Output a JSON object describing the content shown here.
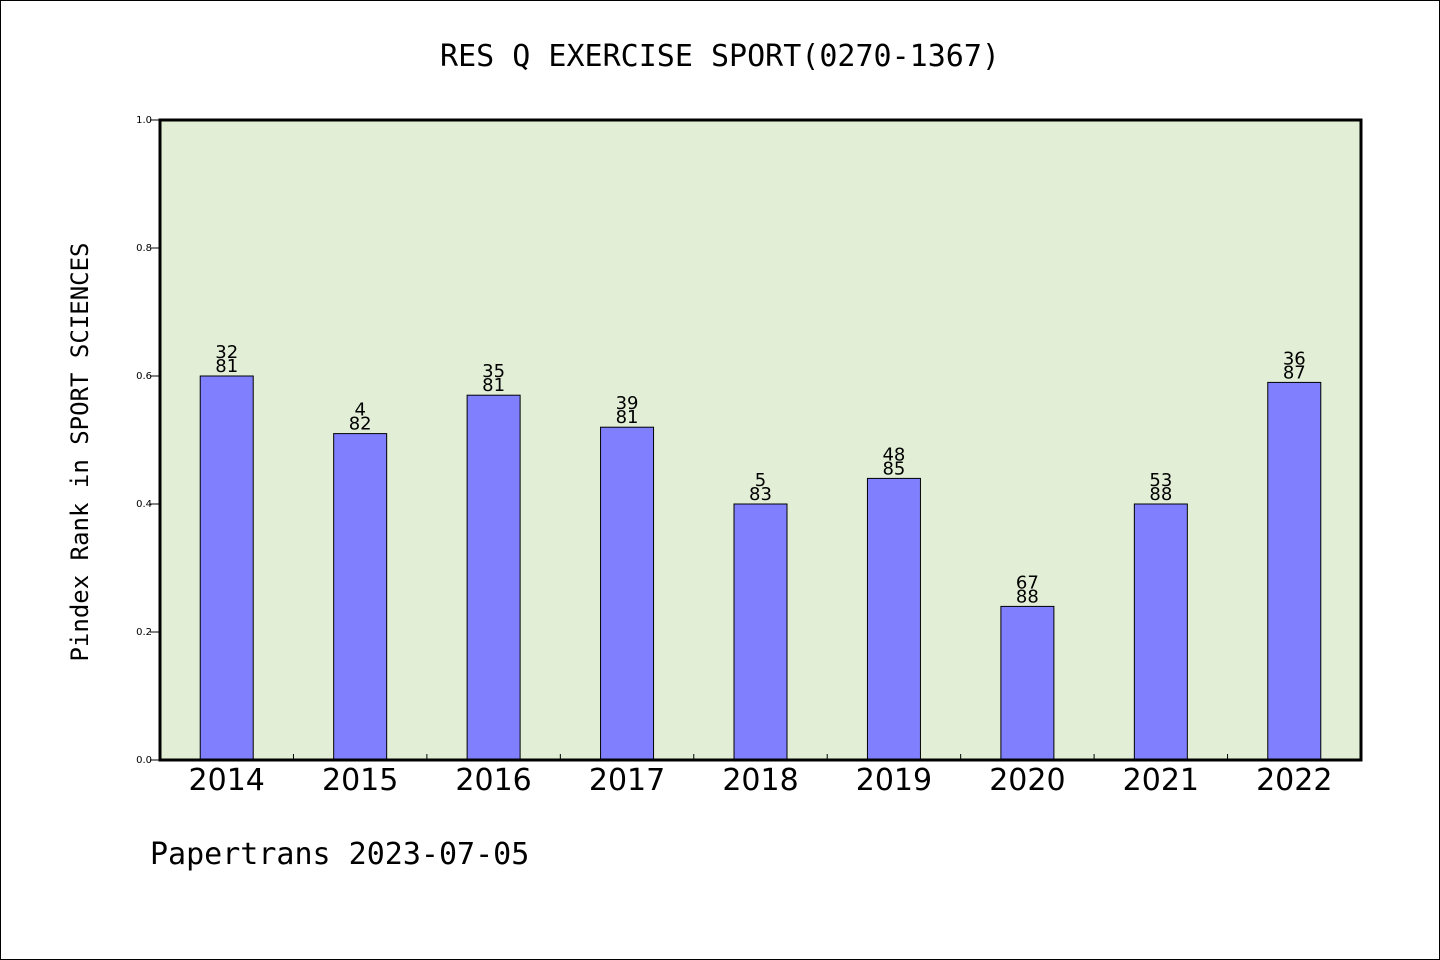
{
  "chart_data": {
    "type": "bar",
    "title": "RES Q EXERCISE SPORT(0270-1367)",
    "ylabel": "Pindex Rank in SPORT SCIENCES",
    "xlabel": "",
    "footer": "Papertrans 2023-07-05",
    "categories": [
      "2014",
      "2015",
      "2016",
      "2017",
      "2018",
      "2019",
      "2020",
      "2021",
      "2022"
    ],
    "values": [
      0.6,
      0.51,
      0.57,
      0.52,
      0.4,
      0.44,
      0.24,
      0.4,
      0.59
    ],
    "rank": [
      "32",
      "4",
      "35",
      "39",
      "5",
      "48",
      "67",
      "53",
      "36"
    ],
    "total": [
      "81",
      "82",
      "81",
      "81",
      "83",
      "85",
      "88",
      "88",
      "87"
    ],
    "ylim": [
      0,
      1.0
    ],
    "yticks": [
      "0.0",
      "0.2",
      "0.4",
      "0.6",
      "0.8",
      "1.0"
    ],
    "grid": false,
    "colors": {
      "bar": "#8080ff",
      "plot_background": "#e2efd6",
      "axis": "#000000"
    }
  }
}
